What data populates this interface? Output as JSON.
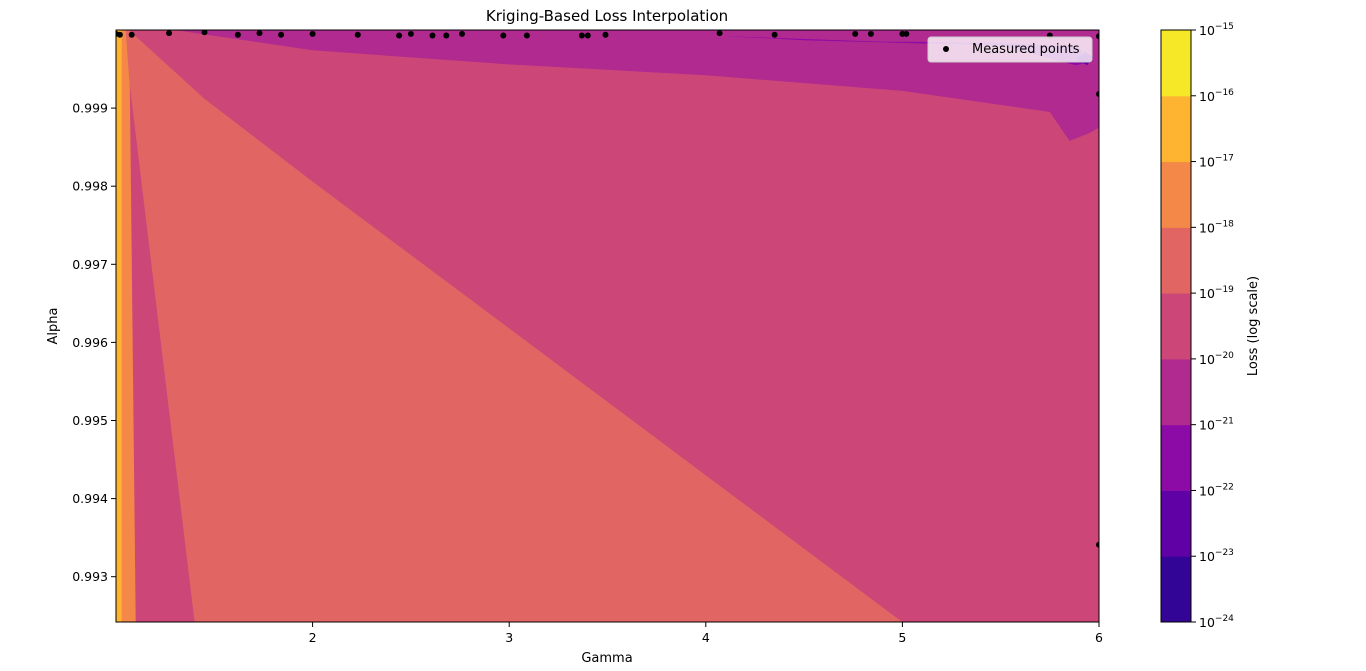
{
  "chart_data": {
    "type": "contour",
    "title": "Kriging-Based Loss Interpolation",
    "xlabel": "Gamma",
    "ylabel": "Alpha",
    "xlim": [
      1.0,
      6.0
    ],
    "ylim": [
      0.99242,
      1.0
    ],
    "x_ticks": [
      2,
      3,
      4,
      5,
      6
    ],
    "y_ticks": [
      0.993,
      0.994,
      0.995,
      0.996,
      0.997,
      0.998,
      0.999
    ],
    "colorbar": {
      "label": "Loss (log scale)",
      "scale": "log",
      "exponents": [
        -24,
        -23,
        -22,
        -21,
        -20,
        -19,
        -18,
        -17,
        -16,
        -15
      ],
      "base": "10",
      "colors": [
        "#330597",
        "#6001a6",
        "#8c0aa5",
        "#b02a8f",
        "#cc4778",
        "#e16562",
        "#f48849",
        "#feb431",
        "#f6e826"
      ]
    },
    "legend": {
      "label": "Measured points",
      "position": "top-right"
    },
    "regions": [
      {
        "level_index": 7,
        "polygon": [
          [
            1.0,
            0.99242
          ],
          [
            1.0,
            1.0
          ],
          [
            1.03,
            1.0
          ],
          [
            1.03,
            0.99242
          ]
        ]
      },
      {
        "level_index": 6,
        "polygon": [
          [
            1.03,
            0.99242
          ],
          [
            1.03,
            1.0
          ],
          [
            1.05,
            1.0
          ],
          [
            1.07,
            0.99929
          ],
          [
            1.1,
            0.99242
          ]
        ]
      },
      {
        "level_index": 5,
        "polygon": [
          [
            1.07,
            0.99929
          ],
          [
            1.05,
            1.0
          ],
          [
            1.07,
            0.99999
          ],
          [
            1.45,
            0.99912
          ],
          [
            2.0,
            0.99806
          ],
          [
            3.0,
            0.99618
          ],
          [
            4.0,
            0.9943
          ],
          [
            4.5,
            0.99336
          ],
          [
            5.0,
            0.99242
          ],
          [
            1.4,
            0.99242
          ]
        ]
      },
      {
        "level_index": 4,
        "polygon": [
          [
            1.07,
            0.99999
          ],
          [
            1.3,
            1.0
          ],
          [
            2.0,
            0.99974
          ],
          [
            3.0,
            0.99956
          ],
          [
            4.0,
            0.99942
          ],
          [
            5.0,
            0.99922
          ],
          [
            5.7,
            0.99902
          ],
          [
            6.0,
            0.99875
          ],
          [
            6.0,
            0.99242
          ],
          [
            5.0,
            0.99242
          ],
          [
            4.5,
            0.99336
          ],
          [
            4.0,
            0.9943
          ],
          [
            3.0,
            0.99618
          ],
          [
            2.0,
            0.99806
          ],
          [
            1.45,
            0.99912
          ]
        ]
      },
      {
        "level_index": 3,
        "polygon": [
          [
            1.3,
            1.0
          ],
          [
            6.0,
            1.0
          ],
          [
            6.0,
            0.99875
          ],
          [
            5.95,
            0.99868
          ],
          [
            5.85,
            0.99858
          ],
          [
            5.75,
            0.99895
          ],
          [
            5.0,
            0.99922
          ],
          [
            4.0,
            0.99942
          ],
          [
            3.0,
            0.99956
          ],
          [
            2.0,
            0.99974
          ]
        ]
      },
      {
        "level_index": 2,
        "polygon": [
          [
            4.1,
            0.99992
          ],
          [
            4.9,
            0.99985
          ],
          [
            5.5,
            0.99984
          ],
          [
            5.9,
            0.99978
          ],
          [
            5.94,
            0.99958
          ],
          [
            5.88,
            0.99955
          ],
          [
            5.5,
            0.9998
          ],
          [
            4.5,
            0.99987
          ]
        ]
      },
      {
        "level_index": 1,
        "polygon": [
          [
            5.88,
            0.99963
          ],
          [
            5.94,
            0.99955
          ],
          [
            5.97,
            0.99965
          ],
          [
            5.93,
            0.99972
          ]
        ]
      }
    ],
    "points": [
      [
        1.0,
        0.99995
      ],
      [
        1.02,
        0.99994
      ],
      [
        1.08,
        0.99994
      ],
      [
        1.27,
        0.99996
      ],
      [
        1.45,
        0.99997
      ],
      [
        1.62,
        0.99994
      ],
      [
        1.73,
        0.99996
      ],
      [
        1.84,
        0.99994
      ],
      [
        2.0,
        0.99995
      ],
      [
        2.23,
        0.99994
      ],
      [
        2.44,
        0.99993
      ],
      [
        2.5,
        0.99995
      ],
      [
        2.61,
        0.99993
      ],
      [
        2.68,
        0.99993
      ],
      [
        2.76,
        0.99995
      ],
      [
        2.97,
        0.99993
      ],
      [
        3.09,
        0.99993
      ],
      [
        3.37,
        0.99993
      ],
      [
        3.4,
        0.99993
      ],
      [
        3.49,
        0.99994
      ],
      [
        4.07,
        0.99996
      ],
      [
        4.35,
        0.99994
      ],
      [
        4.76,
        0.99995
      ],
      [
        4.84,
        0.99995
      ],
      [
        5.0,
        0.99995
      ],
      [
        5.02,
        0.99995
      ],
      [
        5.75,
        0.99993
      ],
      [
        6.0,
        0.99992
      ],
      [
        6.0,
        0.99918
      ],
      [
        6.0,
        0.99341
      ]
    ]
  }
}
